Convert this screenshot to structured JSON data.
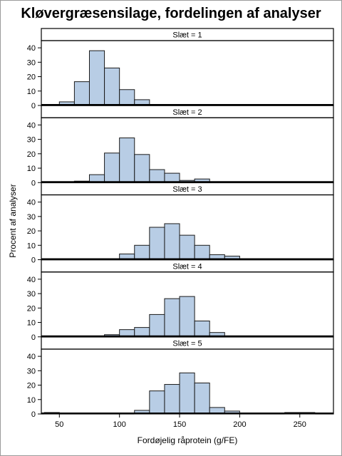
{
  "chart_data": {
    "type": "bar",
    "title": "Kløvergræsensilage, fordelingen af analyser",
    "xlabel": "Fordøjelig råprotein (g/FE)",
    "ylabel": "Procent af analyser",
    "panel_variable": "Slæt",
    "bin_width": 12.5,
    "bin_starts": [
      37.5,
      50,
      62.5,
      75,
      87.5,
      100,
      112.5,
      125,
      137.5,
      150,
      162.5,
      175,
      187.5,
      200,
      212.5,
      225,
      237.5,
      250,
      262.5
    ],
    "xlim": [
      35,
      278
    ],
    "ylim": [
      0,
      45
    ],
    "xticks": [
      50,
      100,
      150,
      200,
      250
    ],
    "yticks": [
      0,
      10,
      20,
      30,
      40
    ],
    "grid": false,
    "colors": {
      "bar_fill": "#b8cde5",
      "bar_stroke": "#1a1a1a"
    },
    "panels": [
      {
        "label": "Slæt = 1",
        "values": [
          0,
          2.5,
          16.5,
          38,
          26,
          11,
          4,
          0.3,
          0.3,
          0,
          0,
          0,
          0,
          0,
          0,
          0,
          0,
          0,
          0
        ]
      },
      {
        "label": "Slæt = 2",
        "values": [
          0,
          0,
          1,
          5.5,
          20.5,
          31,
          19.5,
          9,
          6.5,
          1.5,
          2.5,
          0.5,
          0,
          0,
          0,
          0,
          0,
          0,
          0
        ]
      },
      {
        "label": "Slæt = 3",
        "values": [
          0,
          0.5,
          0.5,
          0.5,
          0.5,
          4,
          10,
          22.5,
          25,
          17,
          10,
          3.5,
          2.5,
          0.5,
          0,
          0,
          0,
          0,
          0
        ]
      },
      {
        "label": "Slæt = 4",
        "values": [
          0,
          0,
          0,
          0.5,
          1.5,
          5,
          6.5,
          15.5,
          26.5,
          28,
          11,
          3,
          0.5,
          0,
          0,
          0,
          0,
          0,
          0
        ]
      },
      {
        "label": "Slæt = 5",
        "values": [
          1,
          0,
          0,
          0,
          0,
          0,
          2.5,
          16,
          20.5,
          28.5,
          21.5,
          4.5,
          2,
          0,
          0,
          0,
          1,
          1,
          0
        ]
      }
    ]
  }
}
